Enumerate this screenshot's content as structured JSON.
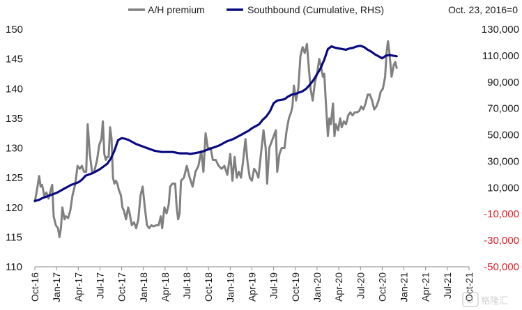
{
  "chart_data": {
    "type": "line",
    "title": "",
    "note": "Oct. 23, 2016=0",
    "x_ticks": [
      "Oct-16",
      "Jan-17",
      "Apr-17",
      "Jul-17",
      "Oct-17",
      "Jan-18",
      "Apr-18",
      "Jul-18",
      "Oct-18",
      "Jan-19",
      "Apr-19",
      "Jul-19",
      "Oct-19",
      "Jan-20",
      "Apr-20",
      "Jul-20",
      "Oct-20",
      "Jan-21",
      "Apr-21",
      "Jul-21",
      "Oct-21"
    ],
    "x_range": [
      0,
      60
    ],
    "left_axis": {
      "range": [
        110,
        150
      ],
      "ticks": [
        110,
        115,
        120,
        125,
        130,
        135,
        140,
        145,
        150
      ],
      "color": "#1a1a1a"
    },
    "right_axis": {
      "range": [
        -50000,
        130000
      ],
      "ticks": [
        -50000,
        -30000,
        -10000,
        10000,
        30000,
        50000,
        70000,
        90000,
        110000,
        130000
      ],
      "tick_labels": [
        "-50,000",
        "-30,000",
        "-10,000",
        "10,000",
        "30,000",
        "50,000",
        "70,000",
        "90,000",
        "110,000",
        "130,000"
      ],
      "negative_color": "#e0202a",
      "positive_color": "#1a1a1a"
    },
    "legend": "top",
    "grid": false,
    "series": [
      {
        "name": "A/H premium",
        "axis": "left",
        "color": "#808080",
        "points": [
          [
            0,
            121
          ],
          [
            0.3,
            123
          ],
          [
            0.6,
            125.3
          ],
          [
            0.8,
            123.5
          ],
          [
            1.0,
            123.8
          ],
          [
            1.3,
            122
          ],
          [
            1.6,
            122.5
          ],
          [
            1.9,
            121.5
          ],
          [
            2.1,
            122.5
          ],
          [
            2.4,
            123.8
          ],
          [
            2.6,
            118.5
          ],
          [
            2.9,
            117
          ],
          [
            3.2,
            116.5
          ],
          [
            3.4,
            115
          ],
          [
            3.6,
            116.5
          ],
          [
            3.8,
            120
          ],
          [
            4.1,
            118
          ],
          [
            4.3,
            118.5
          ],
          [
            4.6,
            118.2
          ],
          [
            4.9,
            119.5
          ],
          [
            5.2,
            122
          ],
          [
            5.6,
            124
          ],
          [
            5.9,
            127
          ],
          [
            6.2,
            126.5
          ],
          [
            6.5,
            127
          ],
          [
            6.8,
            126
          ],
          [
            7.1,
            126
          ],
          [
            7.3,
            134
          ],
          [
            7.6,
            129
          ],
          [
            7.9,
            126
          ],
          [
            8.2,
            126
          ],
          [
            8.6,
            128
          ],
          [
            8.9,
            130.5
          ],
          [
            9.2,
            131.5
          ],
          [
            9.4,
            134.5
          ],
          [
            9.6,
            129
          ],
          [
            9.8,
            128
          ],
          [
            10.0,
            128.5
          ],
          [
            10.2,
            128.5
          ],
          [
            10.4,
            133.5
          ],
          [
            10.6,
            131.5
          ],
          [
            10.8,
            125
          ],
          [
            11.0,
            124
          ],
          [
            11.2,
            124.5
          ],
          [
            11.4,
            124
          ],
          [
            11.6,
            123
          ],
          [
            11.9,
            122
          ],
          [
            12.1,
            120
          ],
          [
            12.3,
            119.5
          ],
          [
            12.6,
            118
          ],
          [
            12.9,
            120
          ],
          [
            13.1,
            119
          ],
          [
            13.4,
            117
          ],
          [
            13.7,
            117.5
          ],
          [
            14.0,
            116.5
          ],
          [
            14.3,
            118
          ],
          [
            14.6,
            122
          ],
          [
            14.9,
            123.5
          ],
          [
            15.2,
            120
          ],
          [
            15.5,
            117
          ],
          [
            15.8,
            116.5
          ],
          [
            16.1,
            117
          ],
          [
            16.4,
            116.8
          ],
          [
            16.8,
            117
          ],
          [
            17.1,
            117
          ],
          [
            17.4,
            118.5
          ],
          [
            17.6,
            116.5
          ],
          [
            17.9,
            120
          ],
          [
            18.2,
            119
          ],
          [
            18.5,
            120.5
          ],
          [
            18.7,
            123.5
          ],
          [
            19.0,
            124
          ],
          [
            19.4,
            124
          ],
          [
            19.6,
            120
          ],
          [
            19.8,
            118
          ],
          [
            20.0,
            119
          ],
          [
            20.2,
            124.5
          ],
          [
            20.6,
            125
          ],
          [
            21.0,
            127
          ],
          [
            21.4,
            125
          ],
          [
            21.8,
            123.5
          ],
          [
            22.2,
            126
          ],
          [
            22.6,
            127
          ],
          [
            23.0,
            129.5
          ],
          [
            23.3,
            126
          ],
          [
            23.6,
            132.5
          ],
          [
            23.9,
            130
          ],
          [
            24.3,
            130
          ],
          [
            24.6,
            128
          ],
          [
            25.0,
            128
          ],
          [
            25.4,
            127
          ],
          [
            25.8,
            126.5
          ],
          [
            26.2,
            127
          ],
          [
            26.6,
            125.5
          ],
          [
            27.0,
            129
          ],
          [
            27.3,
            124.5
          ],
          [
            27.6,
            128.5
          ],
          [
            27.9,
            125
          ],
          [
            28.2,
            126
          ],
          [
            28.5,
            125
          ],
          [
            28.8,
            128
          ],
          [
            29.1,
            131.5
          ],
          [
            29.4,
            127.5
          ],
          [
            29.7,
            125
          ],
          [
            30.0,
            124.5
          ],
          [
            30.3,
            126.5
          ],
          [
            30.6,
            126
          ],
          [
            30.9,
            125
          ],
          [
            31.2,
            128.5
          ],
          [
            31.6,
            133
          ],
          [
            31.9,
            130
          ],
          [
            32.1,
            124
          ],
          [
            32.4,
            130
          ],
          [
            32.7,
            131
          ],
          [
            33.0,
            132
          ],
          [
            33.3,
            133
          ],
          [
            33.5,
            126
          ],
          [
            33.8,
            129
          ],
          [
            34.1,
            130
          ],
          [
            34.5,
            130
          ],
          [
            34.8,
            133
          ],
          [
            35.1,
            135
          ],
          [
            35.4,
            136
          ],
          [
            35.6,
            137
          ],
          [
            35.8,
            140.5
          ],
          [
            36.1,
            138
          ],
          [
            36.4,
            140
          ],
          [
            36.7,
            145.5
          ],
          [
            37.0,
            147
          ],
          [
            37.3,
            146
          ],
          [
            37.6,
            147.5
          ],
          [
            37.9,
            143
          ],
          [
            38.1,
            140
          ],
          [
            38.4,
            138
          ],
          [
            38.7,
            141
          ],
          [
            39.0,
            142.5
          ],
          [
            39.3,
            145
          ],
          [
            39.5,
            144
          ],
          [
            39.8,
            142
          ],
          [
            40.0,
            142.5
          ],
          [
            40.2,
            138
          ],
          [
            40.5,
            132
          ],
          [
            40.7,
            135
          ],
          [
            40.9,
            134
          ],
          [
            41.2,
            137.5
          ],
          [
            41.4,
            132
          ],
          [
            41.6,
            134
          ],
          [
            41.9,
            133
          ],
          [
            42.2,
            135
          ],
          [
            42.4,
            133.5
          ],
          [
            42.7,
            134.5
          ],
          [
            43.0,
            134
          ],
          [
            43.3,
            135.5
          ],
          [
            43.6,
            136
          ],
          [
            43.9,
            135.5
          ],
          [
            44.2,
            136
          ],
          [
            44.5,
            136
          ],
          [
            44.8,
            136.2
          ],
          [
            45.1,
            137
          ],
          [
            45.4,
            136.5
          ],
          [
            45.7,
            137.5
          ],
          [
            46.0,
            139
          ],
          [
            46.3,
            139
          ],
          [
            46.6,
            138
          ],
          [
            46.9,
            136.5
          ],
          [
            47.2,
            137
          ],
          [
            47.5,
            138
          ],
          [
            47.8,
            139.5
          ],
          [
            48.1,
            140
          ],
          [
            48.4,
            142
          ],
          [
            48.6,
            146
          ],
          [
            48.8,
            148
          ],
          [
            49.0,
            146
          ],
          [
            49.3,
            142
          ],
          [
            49.6,
            144
          ],
          [
            49.8,
            144.5
          ],
          [
            50.0,
            143.5
          ]
        ]
      },
      {
        "name": "Southbound (Cumulative, RHS)",
        "axis": "right",
        "color": "#0a0a80",
        "points": [
          [
            0,
            0
          ],
          [
            0.5,
            500
          ],
          [
            1.0,
            2000
          ],
          [
            1.5,
            3000
          ],
          [
            2.0,
            4000
          ],
          [
            2.5,
            5000
          ],
          [
            3.0,
            6000
          ],
          [
            3.5,
            7500
          ],
          [
            4.0,
            9000
          ],
          [
            4.5,
            10500
          ],
          [
            5.0,
            12000
          ],
          [
            5.5,
            13000
          ],
          [
            6.0,
            14000
          ],
          [
            6.5,
            16000
          ],
          [
            7.0,
            19000
          ],
          [
            7.5,
            20000
          ],
          [
            8.0,
            21000
          ],
          [
            8.5,
            22500
          ],
          [
            9.0,
            24000
          ],
          [
            9.5,
            26000
          ],
          [
            10.0,
            28000
          ],
          [
            10.5,
            32000
          ],
          [
            11.0,
            38000
          ],
          [
            11.5,
            46000
          ],
          [
            12.0,
            47500
          ],
          [
            12.5,
            47000
          ],
          [
            13.0,
            46000
          ],
          [
            13.5,
            44500
          ],
          [
            14.0,
            43000
          ],
          [
            14.5,
            42000
          ],
          [
            15.0,
            41000
          ],
          [
            15.5,
            40000
          ],
          [
            16.0,
            39000
          ],
          [
            16.5,
            38000
          ],
          [
            17.0,
            37500
          ],
          [
            17.5,
            37000
          ],
          [
            18.0,
            37000
          ],
          [
            18.5,
            37000
          ],
          [
            19.0,
            37000
          ],
          [
            19.5,
            36500
          ],
          [
            20.0,
            36000
          ],
          [
            20.5,
            36000
          ],
          [
            21.0,
            36000
          ],
          [
            21.5,
            35500
          ],
          [
            22.0,
            36000
          ],
          [
            22.5,
            36500
          ],
          [
            23.0,
            37000
          ],
          [
            23.5,
            38000
          ],
          [
            24.0,
            39000
          ],
          [
            24.5,
            40000
          ],
          [
            25.0,
            41000
          ],
          [
            25.5,
            42000
          ],
          [
            26.0,
            43500
          ],
          [
            26.5,
            45000
          ],
          [
            27.0,
            46000
          ],
          [
            27.5,
            47000
          ],
          [
            28.0,
            48500
          ],
          [
            28.5,
            50000
          ],
          [
            29.0,
            51500
          ],
          [
            29.5,
            53000
          ],
          [
            30.0,
            55000
          ],
          [
            30.5,
            56500
          ],
          [
            31.0,
            58000
          ],
          [
            31.5,
            61500
          ],
          [
            32.0,
            64000
          ],
          [
            32.5,
            68000
          ],
          [
            33.0,
            74000
          ],
          [
            33.5,
            76000
          ],
          [
            34.0,
            76500
          ],
          [
            34.5,
            77000
          ],
          [
            35.0,
            79000
          ],
          [
            35.5,
            80500
          ],
          [
            36.0,
            81000
          ],
          [
            36.5,
            82000
          ],
          [
            37.0,
            83000
          ],
          [
            37.5,
            85000
          ],
          [
            38.0,
            88000
          ],
          [
            38.5,
            91500
          ],
          [
            39.0,
            96000
          ],
          [
            39.5,
            100500
          ],
          [
            40.0,
            107000
          ],
          [
            40.5,
            115000
          ],
          [
            41.0,
            117000
          ],
          [
            41.5,
            116000
          ],
          [
            42.0,
            115500
          ],
          [
            42.5,
            115000
          ],
          [
            43.0,
            114500
          ],
          [
            43.5,
            115500
          ],
          [
            44.0,
            116000
          ],
          [
            44.5,
            117000
          ],
          [
            45.0,
            117500
          ],
          [
            45.5,
            116500
          ],
          [
            46.0,
            114500
          ],
          [
            46.5,
            113000
          ],
          [
            47.0,
            111000
          ],
          [
            47.5,
            109500
          ],
          [
            48.0,
            108000
          ],
          [
            48.5,
            110000
          ],
          [
            49.0,
            110500
          ],
          [
            49.5,
            110000
          ],
          [
            50.0,
            109500
          ]
        ]
      }
    ]
  },
  "watermark": "格隆汇",
  "colors": {
    "axis": "#888888",
    "gray_line": "#808080",
    "navy_line": "#0a0a80"
  }
}
